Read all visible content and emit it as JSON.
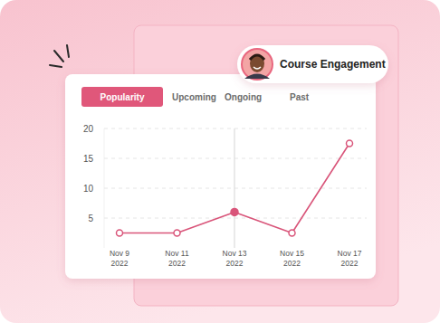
{
  "badge": "Course Engagement",
  "tabs": [
    "Popularity",
    "Upcoming",
    "Ongoing",
    "Past"
  ],
  "chart_data": {
    "type": "line",
    "categories": [
      "Nov 9 2022",
      "Nov 11 2022",
      "Nov 13 2022",
      "Nov 15 2022",
      "Nov 17 2022"
    ],
    "values": [
      2.5,
      2.5,
      6,
      2.5,
      17.5
    ],
    "color": "#d9557a",
    "marker": "circle",
    "ylim": [
      0,
      20
    ],
    "yticks": [
      5,
      10,
      15,
      20
    ],
    "grid": true
  }
}
